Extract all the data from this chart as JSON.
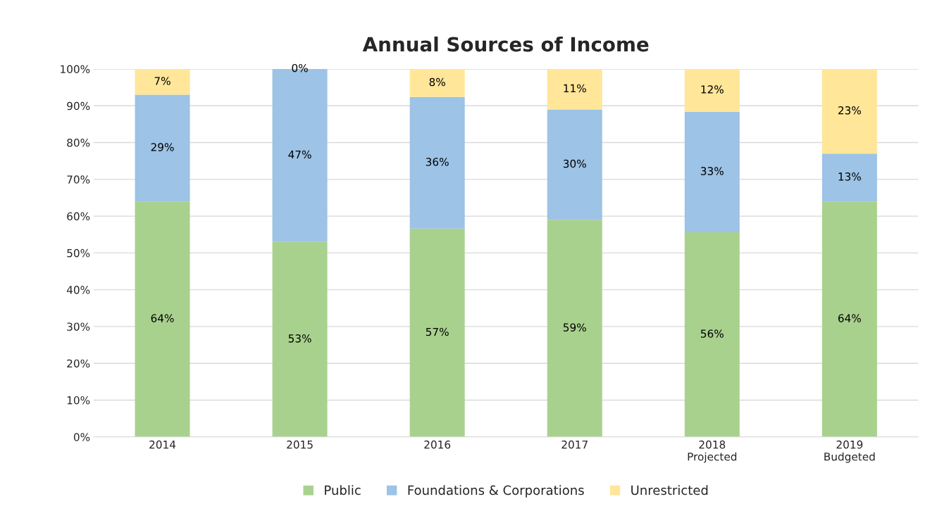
{
  "chart_data": {
    "type": "bar",
    "title": "Annual Sources of Income",
    "stacked": true,
    "categories": [
      "2014",
      "2015",
      "2016",
      "2017",
      "2018\nProjected",
      "2019\nBudgeted"
    ],
    "series": [
      {
        "name": "Public",
        "color": "#a9d18e",
        "values": [
          64,
          53,
          56.6,
          59,
          55.6,
          64
        ],
        "value_labels": [
          "64%",
          "53%",
          "57%",
          "59%",
          "56%",
          "64%"
        ]
      },
      {
        "name": "Foundations & Corporations",
        "color": "#9dc3e6",
        "values": [
          29,
          47,
          35.8,
          30,
          32.8,
          13
        ],
        "value_labels": [
          "29%",
          "47%",
          "36%",
          "30%",
          "33%",
          "13%"
        ]
      },
      {
        "name": "Unrestricted",
        "color": "#ffe699",
        "values": [
          7,
          0,
          7.6,
          11,
          11.6,
          23
        ],
        "value_labels": [
          "7%",
          "0%",
          "8%",
          "11%",
          "12%",
          "23%"
        ]
      }
    ],
    "ylim": [
      0,
      100
    ],
    "yticks": [
      {
        "value": 0,
        "label": "0%"
      },
      {
        "value": 10,
        "label": "10%"
      },
      {
        "value": 20,
        "label": "20%"
      },
      {
        "value": 30,
        "label": "30%"
      },
      {
        "value": 40,
        "label": "40%"
      },
      {
        "value": 50,
        "label": "50%"
      },
      {
        "value": 60,
        "label": "60%"
      },
      {
        "value": 70,
        "label": "70%"
      },
      {
        "value": 80,
        "label": "80%"
      },
      {
        "value": 90,
        "label": "90%"
      },
      {
        "value": 100,
        "label": "100%"
      }
    ],
    "grid": "y",
    "legend": "bottom"
  }
}
